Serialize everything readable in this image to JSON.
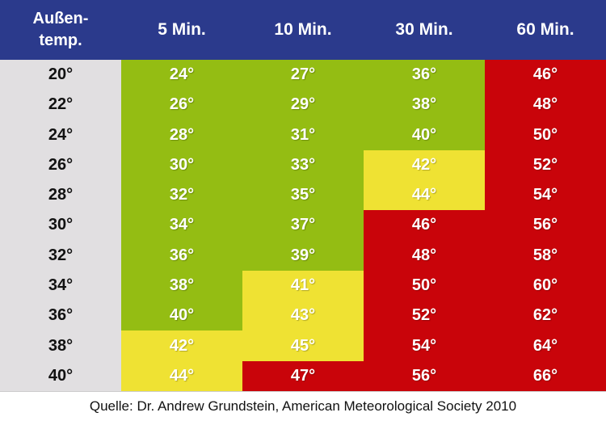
{
  "colors": {
    "header": "#2b3a8c",
    "label_column": "#e1dfe1",
    "green": "#94bd13",
    "yellow": "#efe233",
    "red": "#c9040a"
  },
  "chart_data": {
    "type": "table",
    "columns": [
      "Außen-\ntemp.",
      "5 Min.",
      "10 Min.",
      "30 Min.",
      "60 Min."
    ],
    "rows": [
      {
        "outside": "20°",
        "values": [
          "24°",
          "27°",
          "36°",
          "46°"
        ],
        "levels": [
          "green",
          "green",
          "green",
          "red"
        ]
      },
      {
        "outside": "22°",
        "values": [
          "26°",
          "29°",
          "38°",
          "48°"
        ],
        "levels": [
          "green",
          "green",
          "green",
          "red"
        ]
      },
      {
        "outside": "24°",
        "values": [
          "28°",
          "31°",
          "40°",
          "50°"
        ],
        "levels": [
          "green",
          "green",
          "green",
          "red"
        ]
      },
      {
        "outside": "26°",
        "values": [
          "30°",
          "33°",
          "42°",
          "52°"
        ],
        "levels": [
          "green",
          "green",
          "yellow",
          "red"
        ]
      },
      {
        "outside": "28°",
        "values": [
          "32°",
          "35°",
          "44°",
          "54°"
        ],
        "levels": [
          "green",
          "green",
          "yellow",
          "red"
        ]
      },
      {
        "outside": "30°",
        "values": [
          "34°",
          "37°",
          "46°",
          "56°"
        ],
        "levels": [
          "green",
          "green",
          "red",
          "red"
        ]
      },
      {
        "outside": "32°",
        "values": [
          "36°",
          "39°",
          "48°",
          "58°"
        ],
        "levels": [
          "green",
          "green",
          "red",
          "red"
        ]
      },
      {
        "outside": "34°",
        "values": [
          "38°",
          "41°",
          "50°",
          "60°"
        ],
        "levels": [
          "green",
          "yellow",
          "red",
          "red"
        ]
      },
      {
        "outside": "36°",
        "values": [
          "40°",
          "43°",
          "52°",
          "62°"
        ],
        "levels": [
          "green",
          "yellow",
          "red",
          "red"
        ]
      },
      {
        "outside": "38°",
        "values": [
          "42°",
          "45°",
          "54°",
          "64°"
        ],
        "levels": [
          "yellow",
          "yellow",
          "red",
          "red"
        ]
      },
      {
        "outside": "40°",
        "values": [
          "44°",
          "47°",
          "56°",
          "66°"
        ],
        "levels": [
          "yellow",
          "red",
          "red",
          "red"
        ]
      }
    ],
    "source": "Quelle: Dr. Andrew Grundstein, American Meteorological Society 2010"
  }
}
